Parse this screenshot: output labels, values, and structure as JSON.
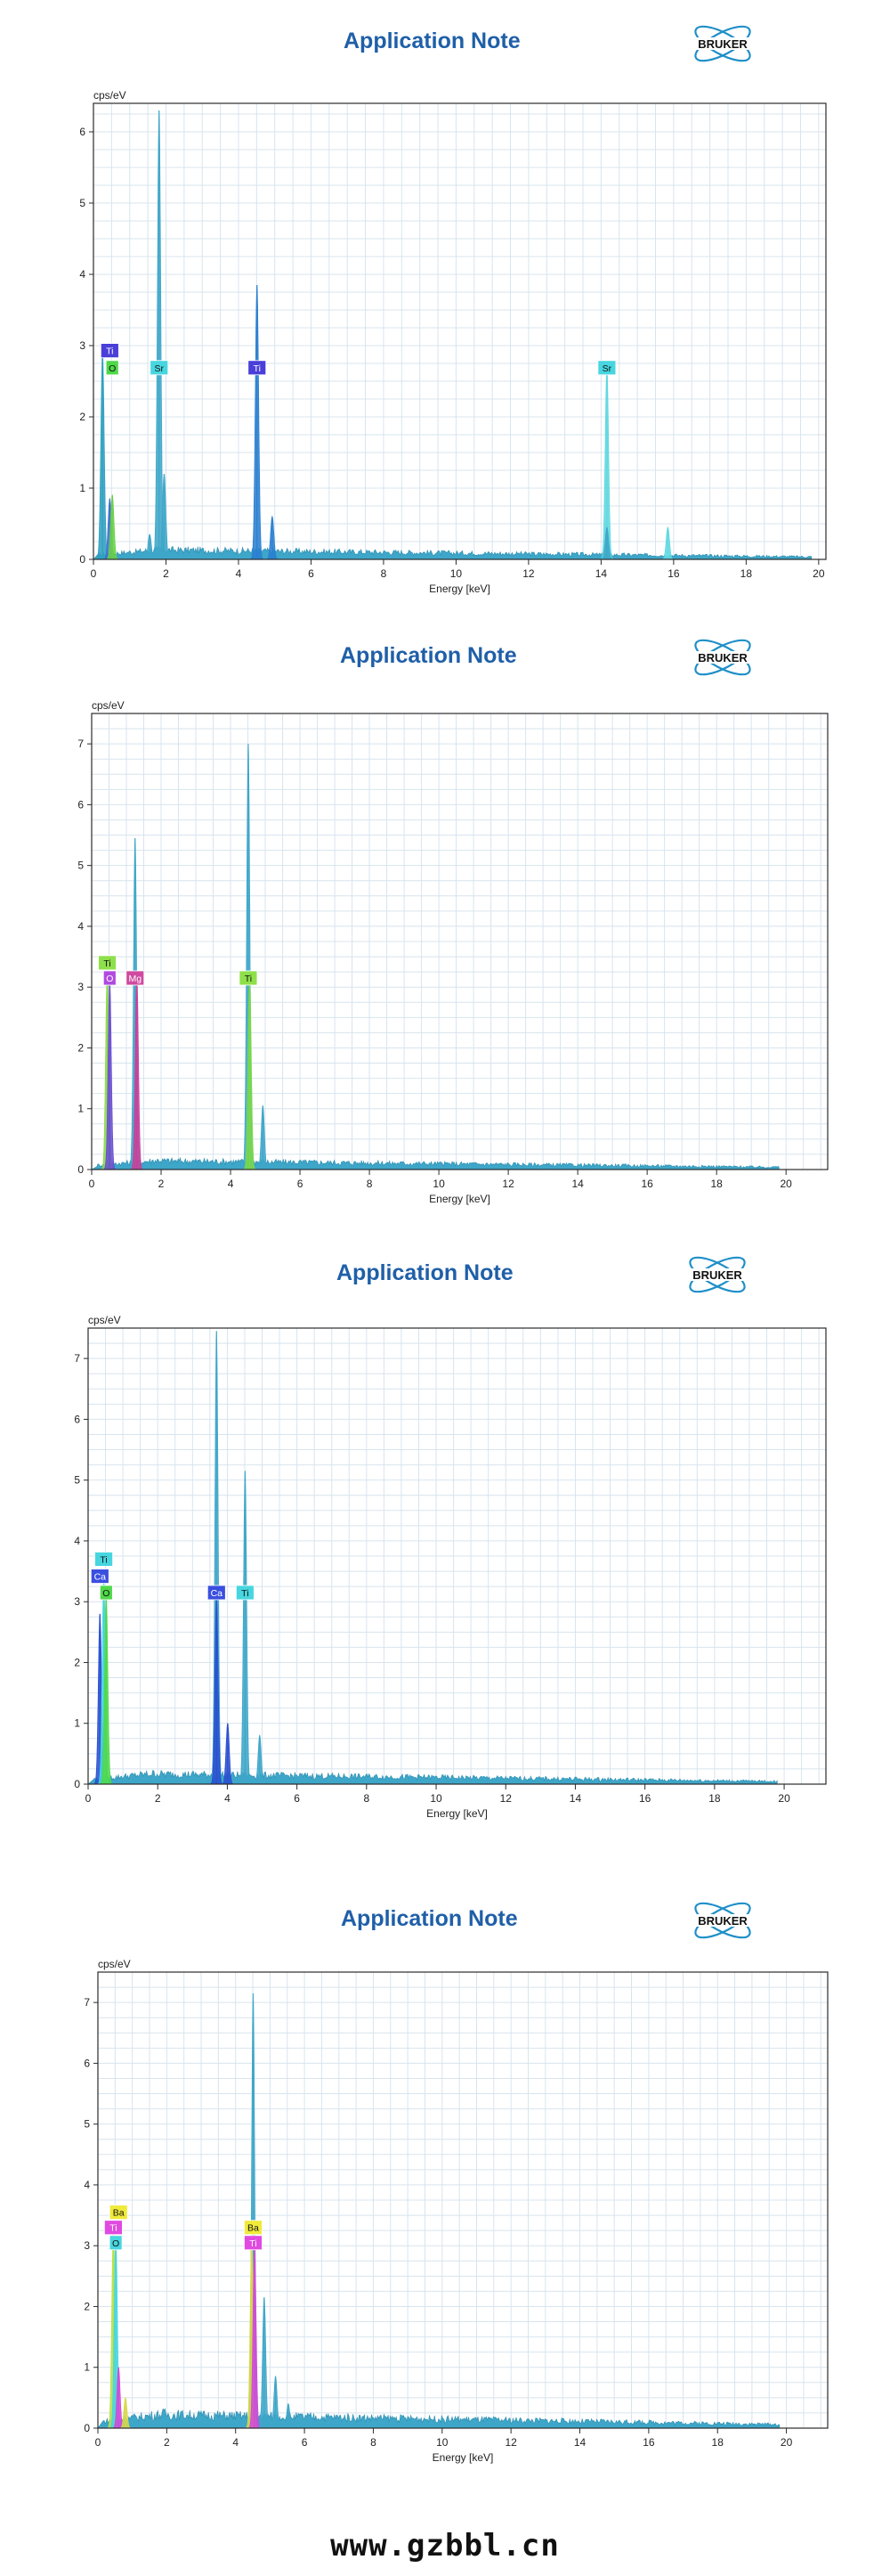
{
  "page": {
    "footer_url": "www.gzbbl.cn"
  },
  "brand": {
    "title": "Application Note",
    "logo_text": "BRUKER",
    "title_color": "#1f5fa8"
  },
  "colors": {
    "spectrum_fill": "#3ea6c8",
    "spectrum_stroke": "#2a8db0",
    "grid": "#d8e4ee",
    "axis": "#2b2b2b"
  },
  "chart_data": [
    {
      "type": "area",
      "ylabel": "cps/eV",
      "xlabel": "Energy [keV]",
      "xlim": [
        0,
        20.2
      ],
      "ylim": [
        0,
        6.4
      ],
      "xticks": [
        0,
        2,
        4,
        6,
        8,
        10,
        12,
        14,
        16,
        18,
        20
      ],
      "yticks": [
        0,
        1,
        2,
        3,
        4,
        5,
        6
      ],
      "grid": true,
      "baseline": 0.12,
      "peaks": [
        {
          "x": 0.25,
          "y": 2.9,
          "color": "#2f9fc0"
        },
        {
          "x": 0.45,
          "y": 0.85,
          "color": "#3b6fd0"
        },
        {
          "x": 0.52,
          "y": 0.9,
          "color": "#6ad04a"
        },
        {
          "x": 1.55,
          "y": 0.35,
          "color": "#3ea6c8"
        },
        {
          "x": 1.81,
          "y": 6.3,
          "color": "#3ea6c8"
        },
        {
          "x": 1.95,
          "y": 1.2,
          "color": "#3ea6c8"
        },
        {
          "x": 4.51,
          "y": 3.85,
          "color": "#2a7fd0"
        },
        {
          "x": 4.93,
          "y": 0.6,
          "color": "#2a7fd0"
        },
        {
          "x": 14.16,
          "y": 2.7,
          "color": "#5fd8e0"
        },
        {
          "x": 14.16,
          "y": 0.45,
          "color": "#3ea6c8"
        },
        {
          "x": 15.84,
          "y": 0.45,
          "color": "#5fd8e0"
        }
      ],
      "labels": [
        {
          "text": "Ti",
          "x": 0.45,
          "y": 2.93,
          "color": "#4a3fd8",
          "text_color": "#ffffff"
        },
        {
          "text": "O",
          "x": 0.52,
          "y": 2.69,
          "color": "#4fd84a",
          "text_color": "#111111"
        },
        {
          "text": "Sr",
          "x": 1.81,
          "y": 2.69,
          "color": "#47d6e0",
          "text_color": "#111111"
        },
        {
          "text": "Ti",
          "x": 4.51,
          "y": 2.69,
          "color": "#4a3fd8",
          "text_color": "#ffffff"
        },
        {
          "text": "Sr",
          "x": 14.16,
          "y": 2.69,
          "color": "#47d6e0",
          "text_color": "#111111"
        }
      ]
    },
    {
      "type": "area",
      "ylabel": "cps/eV",
      "xlabel": "Energy [keV]",
      "xlim": [
        0,
        21.2
      ],
      "ylim": [
        0,
        7.5
      ],
      "xticks": [
        0,
        2,
        4,
        6,
        8,
        10,
        12,
        14,
        16,
        18,
        20
      ],
      "yticks": [
        0,
        1,
        2,
        3,
        4,
        5,
        6,
        7
      ],
      "grid": true,
      "baseline": 0.13,
      "peaks": [
        {
          "x": 0.45,
          "y": 3.3,
          "color": "#8cd84a"
        },
        {
          "x": 0.52,
          "y": 3.1,
          "color": "#6a4fd0"
        },
        {
          "x": 1.25,
          "y": 5.45,
          "color": "#3ea6c8"
        },
        {
          "x": 1.3,
          "y": 3.2,
          "color": "#c8409a"
        },
        {
          "x": 4.51,
          "y": 7.0,
          "color": "#3ea6c8"
        },
        {
          "x": 4.55,
          "y": 3.2,
          "color": "#7ad84a"
        },
        {
          "x": 4.93,
          "y": 1.05,
          "color": "#3ea6c8"
        }
      ],
      "labels": [
        {
          "text": "Ti",
          "x": 0.45,
          "y": 3.4,
          "color": "#8ee04a",
          "text_color": "#111111"
        },
        {
          "text": "O",
          "x": 0.52,
          "y": 3.15,
          "color": "#b04ae0",
          "text_color": "#ffffff"
        },
        {
          "text": "Mg",
          "x": 1.25,
          "y": 3.15,
          "color": "#d04aa0",
          "text_color": "#ffffff"
        },
        {
          "text": "Ti",
          "x": 4.51,
          "y": 3.15,
          "color": "#8ee04a",
          "text_color": "#111111"
        }
      ]
    },
    {
      "type": "area",
      "ylabel": "cps/eV",
      "xlabel": "Energy [keV]",
      "xlim": [
        0,
        21.2
      ],
      "ylim": [
        0,
        7.5
      ],
      "xticks": [
        0,
        2,
        4,
        6,
        8,
        10,
        12,
        14,
        16,
        18,
        20
      ],
      "yticks": [
        0,
        1,
        2,
        3,
        4,
        5,
        6,
        7
      ],
      "grid": true,
      "baseline": 0.15,
      "peaks": [
        {
          "x": 0.34,
          "y": 2.8,
          "color": "#2a4fd0"
        },
        {
          "x": 0.45,
          "y": 3.35,
          "color": "#47d6e0"
        },
        {
          "x": 0.52,
          "y": 3.1,
          "color": "#4fd84a"
        },
        {
          "x": 3.69,
          "y": 7.45,
          "color": "#3ea6c8"
        },
        {
          "x": 3.69,
          "y": 3.1,
          "color": "#2a4fd0"
        },
        {
          "x": 4.01,
          "y": 1.0,
          "color": "#2a4fd0"
        },
        {
          "x": 4.51,
          "y": 5.15,
          "color": "#3ea6c8"
        },
        {
          "x": 4.93,
          "y": 0.8,
          "color": "#3ea6c8"
        }
      ],
      "labels": [
        {
          "text": "Ti",
          "x": 0.45,
          "y": 3.7,
          "color": "#47d6e0",
          "text_color": "#111111"
        },
        {
          "text": "Ca",
          "x": 0.34,
          "y": 3.42,
          "color": "#3a4fe0",
          "text_color": "#ffffff"
        },
        {
          "text": "O",
          "x": 0.52,
          "y": 3.15,
          "color": "#4fd84a",
          "text_color": "#111111"
        },
        {
          "text": "Ca",
          "x": 3.69,
          "y": 3.15,
          "color": "#3a4fe0",
          "text_color": "#ffffff"
        },
        {
          "text": "Ti",
          "x": 4.51,
          "y": 3.15,
          "color": "#47d6e0",
          "text_color": "#111111"
        }
      ]
    },
    {
      "type": "area",
      "ylabel": "cps/eV",
      "xlabel": "Energy [keV]",
      "xlim": [
        0,
        21.2
      ],
      "ylim": [
        0,
        7.5
      ],
      "xticks": [
        0,
        2,
        4,
        6,
        8,
        10,
        12,
        14,
        16,
        18,
        20
      ],
      "yticks": [
        0,
        1,
        2,
        3,
        4,
        5,
        6,
        7
      ],
      "grid": true,
      "baseline": 0.2,
      "peaks": [
        {
          "x": 0.45,
          "y": 3.3,
          "color": "#b8e04a"
        },
        {
          "x": 0.52,
          "y": 3.1,
          "color": "#47d6e0"
        },
        {
          "x": 0.6,
          "y": 1.0,
          "color": "#d04ad8"
        },
        {
          "x": 0.8,
          "y": 0.5,
          "color": "#d8d84a"
        },
        {
          "x": 4.51,
          "y": 7.15,
          "color": "#3ea6c8"
        },
        {
          "x": 4.47,
          "y": 3.2,
          "color": "#d8d84a"
        },
        {
          "x": 4.55,
          "y": 3.0,
          "color": "#d04ad8"
        },
        {
          "x": 4.83,
          "y": 2.15,
          "color": "#3ea6c8"
        },
        {
          "x": 5.16,
          "y": 0.85,
          "color": "#3ea6c8"
        },
        {
          "x": 5.53,
          "y": 0.4,
          "color": "#3ea6c8"
        }
      ],
      "labels": [
        {
          "text": "Ba",
          "x": 0.6,
          "y": 3.55,
          "color": "#f0ea3a",
          "text_color": "#111111"
        },
        {
          "text": "Ti",
          "x": 0.45,
          "y": 3.3,
          "color": "#e04ae0",
          "text_color": "#ffffff"
        },
        {
          "text": "O",
          "x": 0.52,
          "y": 3.05,
          "color": "#47d6e0",
          "text_color": "#111111"
        },
        {
          "text": "Ba",
          "x": 4.51,
          "y": 3.3,
          "color": "#f0ea3a",
          "text_color": "#111111"
        },
        {
          "text": "Ti",
          "x": 4.51,
          "y": 3.05,
          "color": "#e04ae0",
          "text_color": "#ffffff"
        }
      ]
    }
  ]
}
